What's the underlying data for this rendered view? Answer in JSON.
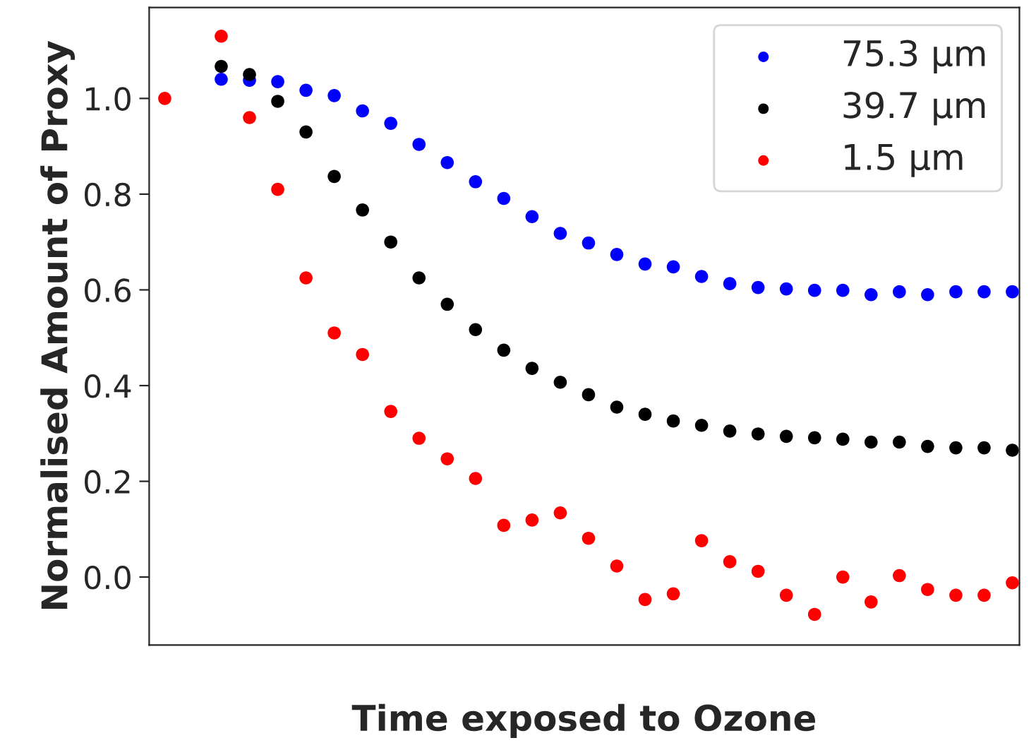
{
  "chart_data": {
    "type": "scatter",
    "xlabel": "Time exposed to Ozone",
    "ylabel": "Normalised Amount of Proxy",
    "categories": [
      null,
      null,
      null,
      null,
      null,
      null,
      null,
      null,
      null,
      null,
      null,
      null,
      null,
      null,
      null,
      null,
      null,
      null,
      null,
      null,
      null,
      null,
      null,
      null,
      null,
      null,
      null,
      null,
      null,
      null,
      null
    ],
    "series": [
      {
        "name": "75.3 µm",
        "color": "#0000ff",
        "values": [
          null,
          null,
          1.04,
          1.038,
          1.035,
          1.017,
          1.006,
          0.974,
          0.948,
          0.904,
          0.866,
          0.826,
          0.791,
          0.753,
          0.718,
          0.698,
          0.674,
          0.654,
          0.648,
          0.628,
          0.613,
          0.605,
          0.602,
          0.599,
          0.599,
          0.59,
          0.596,
          0.59,
          0.596,
          0.596,
          0.596
        ]
      },
      {
        "name": "39.7 µm",
        "color": "#000000",
        "values": [
          null,
          null,
          1.067,
          1.05,
          0.994,
          0.93,
          0.837,
          0.767,
          0.7,
          0.625,
          0.57,
          0.517,
          0.474,
          0.436,
          0.407,
          0.381,
          0.355,
          0.34,
          0.326,
          0.317,
          0.305,
          0.299,
          0.294,
          0.291,
          0.288,
          0.282,
          0.282,
          0.273,
          0.27,
          0.27,
          0.265
        ]
      },
      {
        "name": "1.5 µm",
        "color": "#ff0000",
        "values": [
          1.0,
          null,
          1.13,
          0.96,
          0.81,
          0.625,
          0.51,
          0.465,
          0.346,
          0.29,
          0.247,
          0.206,
          0.108,
          0.119,
          0.134,
          0.081,
          0.023,
          -0.047,
          -0.035,
          0.076,
          0.032,
          0.012,
          -0.038,
          -0.078,
          0.0,
          -0.052,
          0.003,
          -0.026,
          -0.038,
          -0.038,
          -0.012
        ]
      }
    ],
    "ylim": [
      -0.142,
      1.19
    ],
    "yticks": [
      {
        "value": 0,
        "label": "0.0"
      },
      {
        "value": 0.2,
        "label": "0.2"
      },
      {
        "value": 0.4,
        "label": "0.4"
      },
      {
        "value": 0.6,
        "label": "0.6"
      },
      {
        "value": 0.8,
        "label": "0.8"
      },
      {
        "value": 1.0,
        "label": "1.0"
      }
    ],
    "marker": "circle",
    "legend": "top right",
    "grid": false
  }
}
